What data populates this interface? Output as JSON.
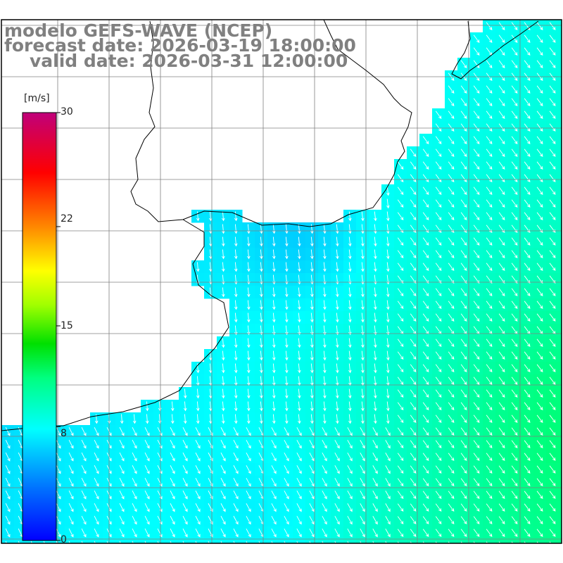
{
  "title": {
    "line1": "modelo GEFS-WAVE (NCEP)",
    "line2": "forecast date: 2026-03-19 18:00:00",
    "line3": "valid date: 2026-03-31 12:00:00"
  },
  "colorbar": {
    "unit": "[m/s]",
    "ticks": [
      "30",
      "22",
      "15",
      "8",
      "0"
    ],
    "tick_values": [
      30,
      22,
      15,
      8,
      0
    ],
    "range": [
      0,
      30
    ],
    "colors": [
      "#0000ff",
      "#0080ff",
      "#00c0ff",
      "#00ffff",
      "#00ff80",
      "#00ff00",
      "#80ff00",
      "#ffff00",
      "#ff8000",
      "#ff0000",
      "#e00040",
      "#c00080"
    ]
  },
  "map": {
    "variable": "wind speed",
    "arrow_color": "#ffffff",
    "land_color": "#ffffff",
    "grid_color": "#808080",
    "coast_color": "#000000"
  }
}
